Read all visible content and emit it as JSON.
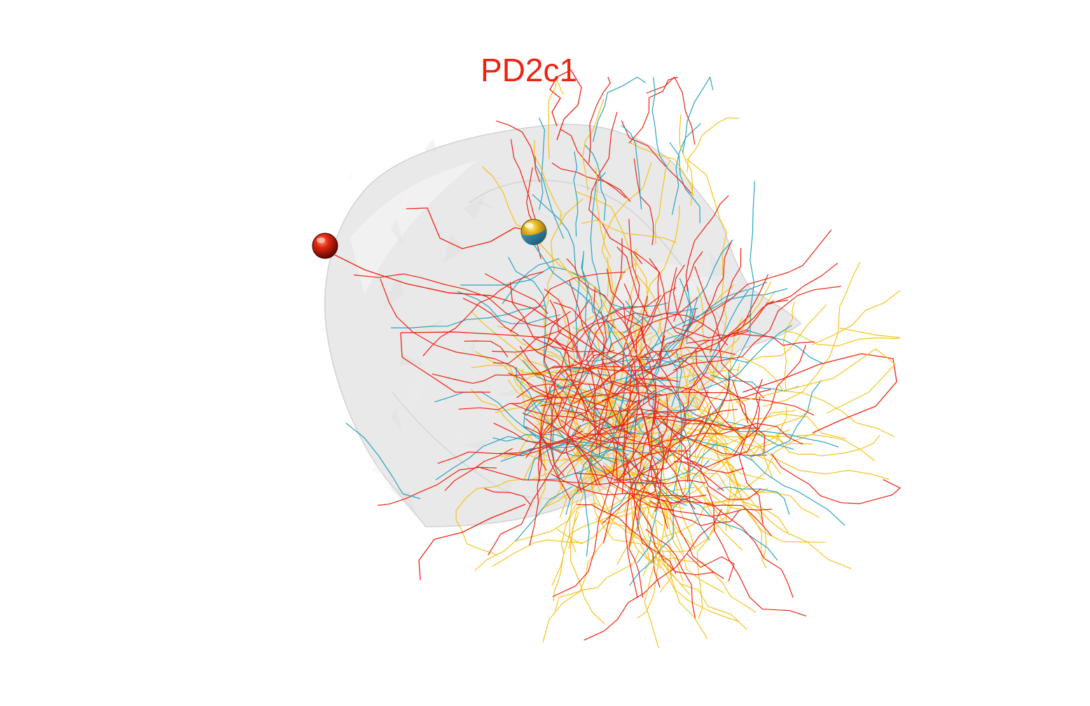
{
  "title": "PD2c1",
  "colors": {
    "title": "#ee2211",
    "background": "#ffffff",
    "neuropil_fill": "#e6e6e6",
    "neuropil_stroke": "#d2d2d2",
    "neuron_red": "#ee2211",
    "neuron_yellow": "#f5c21c",
    "neuron_cyan": "#2aa3bf",
    "soma_red": "#cc1100",
    "soma_yellow": "#e8b820",
    "soma_blue": "#2a86b0"
  },
  "neuropil": {
    "name": "brain-region-mesh",
    "shape": "translucent-3d-surface"
  },
  "neurons": [
    {
      "name": "red-neuron",
      "color_key": "neuron_red",
      "soma": "red-soma"
    },
    {
      "name": "yellow-neuron",
      "color_key": "neuron_yellow",
      "soma": "yellow-blue-soma"
    },
    {
      "name": "cyan-neuron",
      "color_key": "neuron_cyan",
      "soma": "yellow-blue-soma"
    }
  ]
}
